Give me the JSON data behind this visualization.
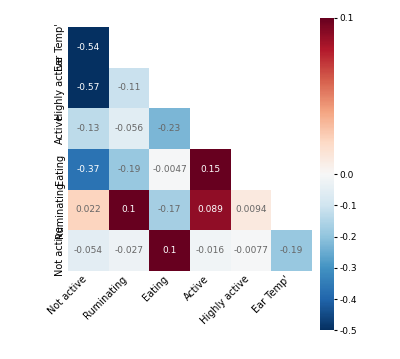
{
  "matrix": [
    [
      -0.54,
      null,
      null,
      null,
      null,
      null
    ],
    [
      -0.57,
      -0.11,
      null,
      null,
      null,
      null
    ],
    [
      -0.13,
      -0.056,
      -0.23,
      null,
      null,
      null
    ],
    [
      -0.37,
      -0.19,
      -0.0047,
      0.15,
      null,
      null
    ],
    [
      0.022,
      0.1,
      -0.17,
      0.089,
      0.0094,
      null
    ],
    [
      -0.054,
      -0.027,
      0.1,
      -0.016,
      -0.0077,
      -0.19
    ]
  ],
  "y_labels": [
    "Ear Temp'",
    "Highly active",
    "Active",
    "Eating",
    "Ruminating",
    "Not active"
  ],
  "x_labels": [
    "Not active",
    "Ruminating",
    "Eating",
    "Active",
    "Highly active",
    "Ear Temp'"
  ],
  "cmap_vmin": -0.5,
  "cmap_vmax": 0.1,
  "colorbar_ticks": [
    0.1,
    0.0,
    -0.1,
    -0.2,
    -0.3,
    -0.4,
    -0.5
  ],
  "text_color_light": "white",
  "text_color_dark": "#666666",
  "bg_color": "white",
  "figsize": [
    4.0,
    3.59
  ],
  "dpi": 100,
  "fontsize_annotation": 6.5,
  "fontsize_tick": 7.0,
  "fontsize_cbar": 6.5
}
